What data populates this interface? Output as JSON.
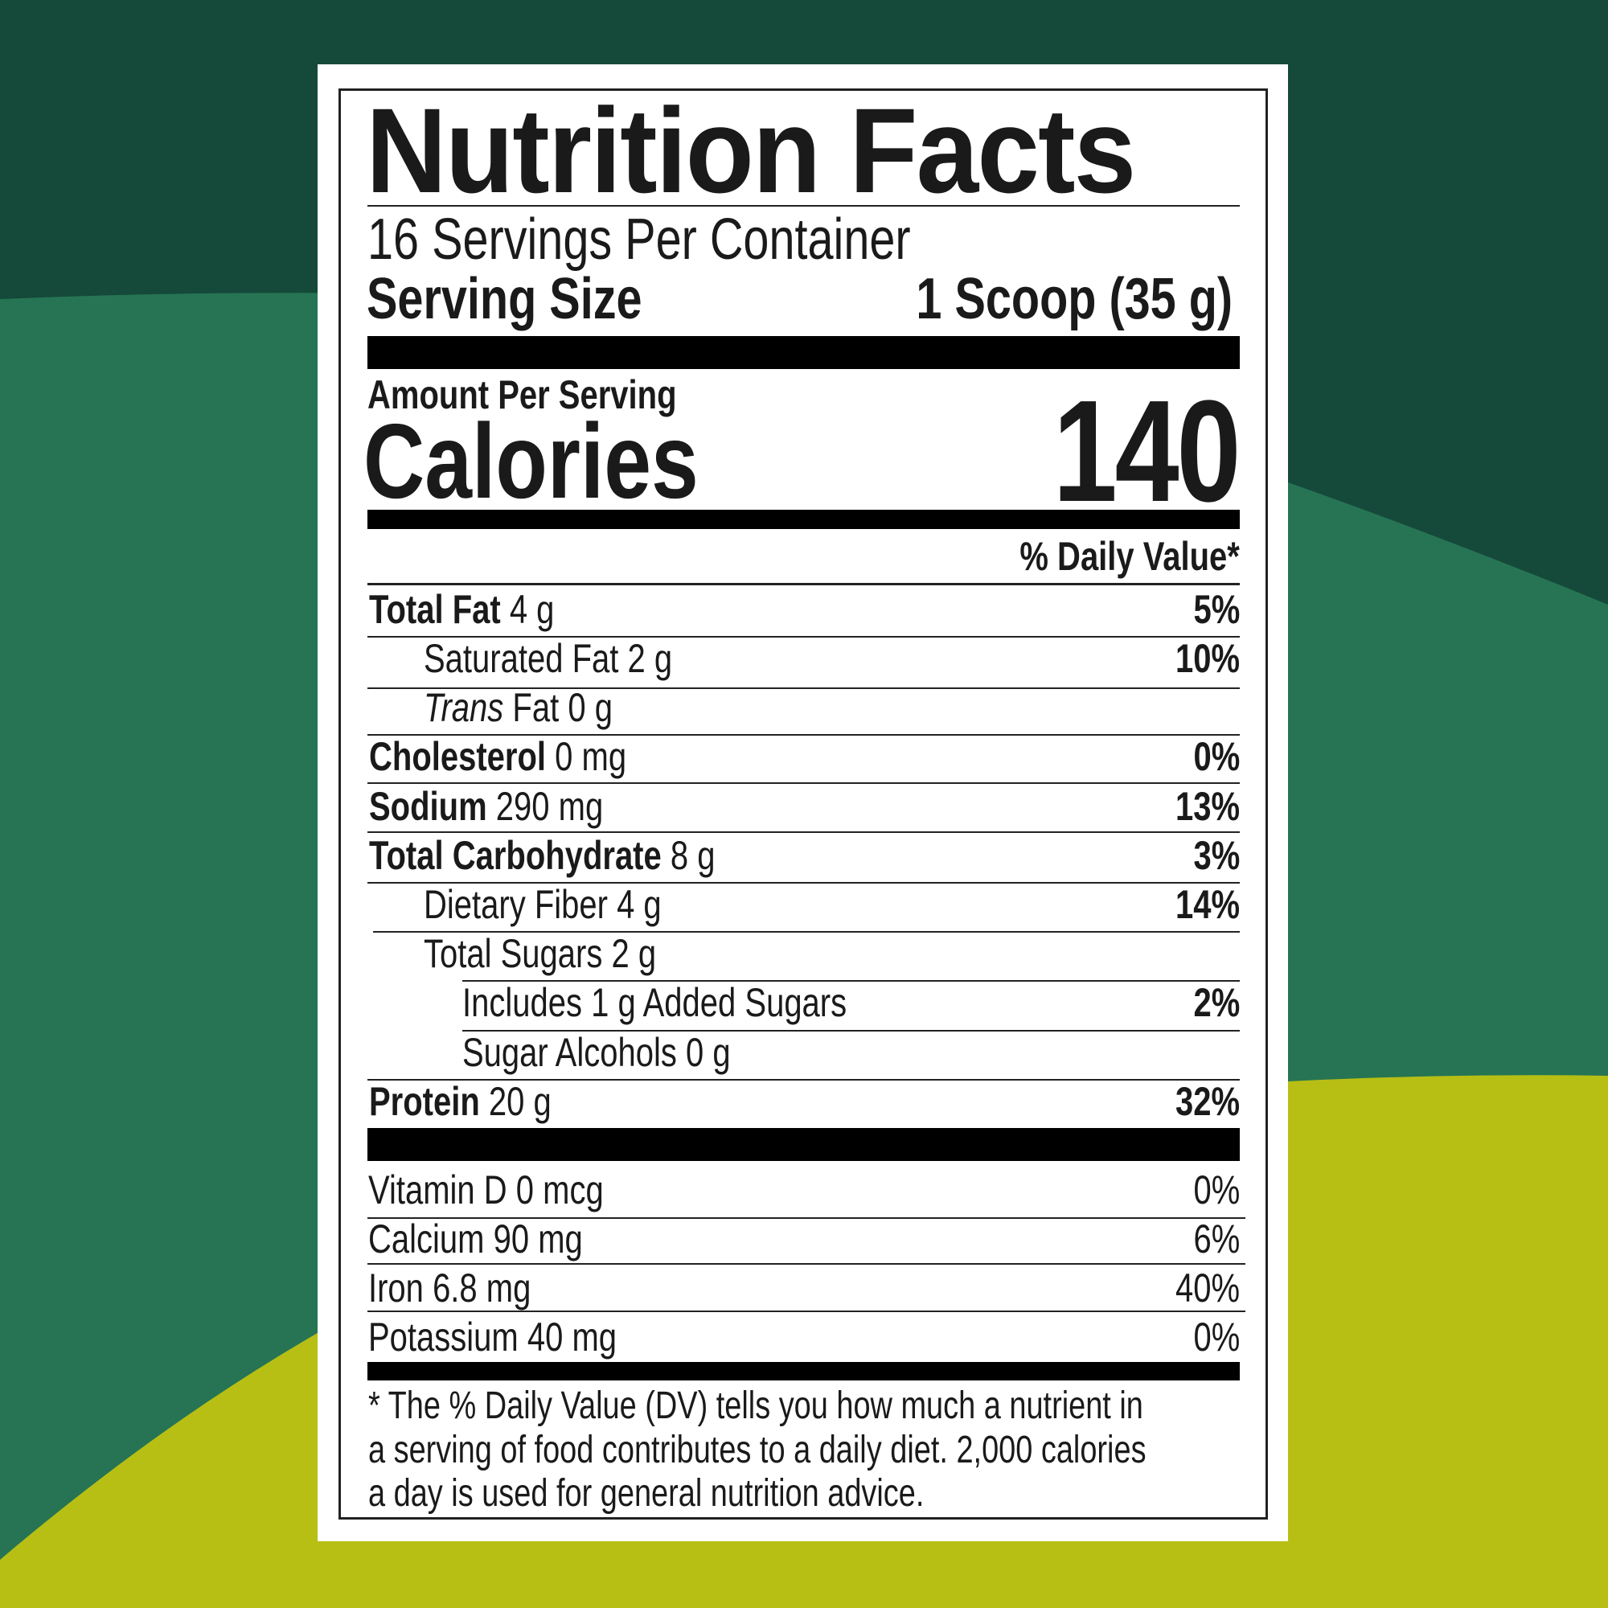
{
  "colors": {
    "bg_dark": "#15493a",
    "bg_mid": "#267454",
    "bg_lime": "#b7bf14",
    "ink": "#1a1a1a"
  },
  "label": {
    "title": "Nutrition Facts",
    "servings_per_container": "16 Servings Per Container",
    "serving_size_label": "Serving Size",
    "serving_size_value": "1 Scoop (35 g)",
    "amount_per_serving": "Amount Per Serving",
    "calories_label": "Calories",
    "calories_value": "140",
    "daily_value_header": "% Daily Value*",
    "nutrients": [
      {
        "name": "Total Fat",
        "amount": "4 g",
        "dv": "5%",
        "level": 0
      },
      {
        "name": "Saturated Fat",
        "amount": "2 g",
        "dv": "10%",
        "level": 1
      },
      {
        "name_italic": "Trans",
        "name": "Fat",
        "amount": "0 g",
        "dv": "",
        "level": 1
      },
      {
        "name": "Cholesterol",
        "amount": "0 mg",
        "dv": "0%",
        "level": 0
      },
      {
        "name": "Sodium",
        "amount": "290 mg",
        "dv": "13%",
        "level": 0
      },
      {
        "name": "Total Carbohydrate",
        "amount": "8 g",
        "dv": "3%",
        "level": 0
      },
      {
        "name": "Dietary Fiber",
        "amount": "4 g",
        "dv": "14%",
        "level": 1
      },
      {
        "name": "Total Sugars",
        "amount": "2 g",
        "dv": "",
        "level": 1
      },
      {
        "name": "Includes 1 g Added Sugars",
        "amount": "",
        "dv": "2%",
        "level": 2
      },
      {
        "name": "Sugar Alcohols",
        "amount": "0 g",
        "dv": "",
        "level": 2
      },
      {
        "name": "Protein",
        "amount": "20 g",
        "dv": "32%",
        "level": 0
      }
    ],
    "micronutrients": [
      {
        "name": "Vitamin D",
        "amount": "0 mcg",
        "dv": "0%"
      },
      {
        "name": "Calcium",
        "amount": "90 mg",
        "dv": "6%"
      },
      {
        "name": "Iron",
        "amount": "6.8 mg",
        "dv": "40%"
      },
      {
        "name": "Potassium",
        "amount": "40 mg",
        "dv": "0%"
      }
    ],
    "footnote": [
      "* The % Daily Value (DV) tells you how much a nutrient in",
      "a serving of food contributes to a daily diet. 2,000 calories",
      "a day is used for general nutrition advice."
    ]
  }
}
